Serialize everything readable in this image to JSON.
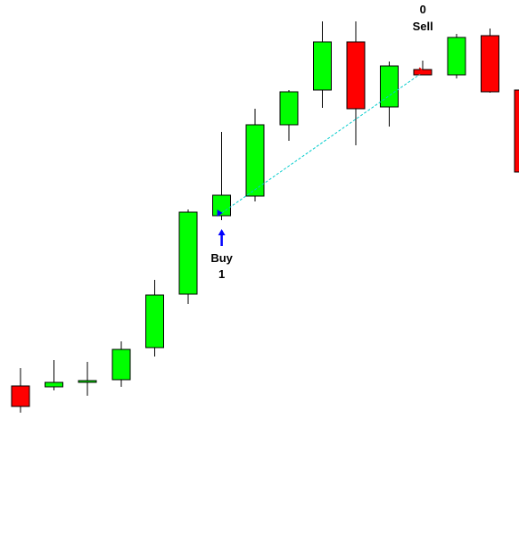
{
  "chart_data": {
    "type": "candlestick",
    "title": "",
    "xlabel": "",
    "ylabel": "",
    "grid": false,
    "legend": "none",
    "ylim": [
      0,
      598
    ],
    "colors": {
      "up": "#00ff00",
      "down": "#ff0000",
      "outline": "#000000",
      "wick": "#000000",
      "trade_line": "#00cccc",
      "buy_arrow": "#0000ff",
      "sell_arrow": "#ff0000",
      "label_text": "#000000"
    },
    "candles": [
      {
        "index": 0,
        "open": 165,
        "high": 185,
        "low": 135,
        "close": 142
      },
      {
        "index": 1,
        "open": 164,
        "high": 194,
        "low": 160,
        "close": 169
      },
      {
        "index": 2,
        "open": 169,
        "high": 192,
        "low": 154,
        "close": 171
      },
      {
        "index": 3,
        "open": 172,
        "high": 215,
        "low": 164,
        "close": 206
      },
      {
        "index": 4,
        "open": 208,
        "high": 284,
        "low": 198,
        "close": 267
      },
      {
        "index": 5,
        "open": 268,
        "high": 363,
        "low": 257,
        "close": 360
      },
      {
        "index": 6,
        "open": 356,
        "high": 450,
        "low": 351,
        "close": 379
      },
      {
        "index": 7,
        "open": 378,
        "high": 476,
        "low": 372,
        "close": 458
      },
      {
        "index": 8,
        "open": 458,
        "high": 497,
        "low": 440,
        "close": 495
      },
      {
        "index": 9,
        "open": 497,
        "high": 574,
        "low": 477,
        "close": 551
      },
      {
        "index": 10,
        "open": 551,
        "high": 574,
        "low": 435,
        "close": 476
      },
      {
        "index": 11,
        "open": 478,
        "high": 529,
        "low": 456,
        "close": 524
      },
      {
        "index": 12,
        "open": 520,
        "high": 530,
        "low": 514,
        "close": 514
      },
      {
        "index": 13,
        "open": 514,
        "high": 560,
        "low": 510,
        "close": 556
      },
      {
        "index": 14,
        "open": 558,
        "high": 566,
        "low": 494,
        "close": 495
      },
      {
        "index": 15,
        "open": 497,
        "high": 497,
        "low": 405,
        "close": 405
      }
    ],
    "trades": [
      {
        "entry": {
          "index": 6,
          "price": 359,
          "label": "Buy",
          "qty": "1"
        },
        "exit": {
          "index": 12,
          "price": 517,
          "label": "Sell",
          "qty": "0"
        }
      }
    ]
  }
}
